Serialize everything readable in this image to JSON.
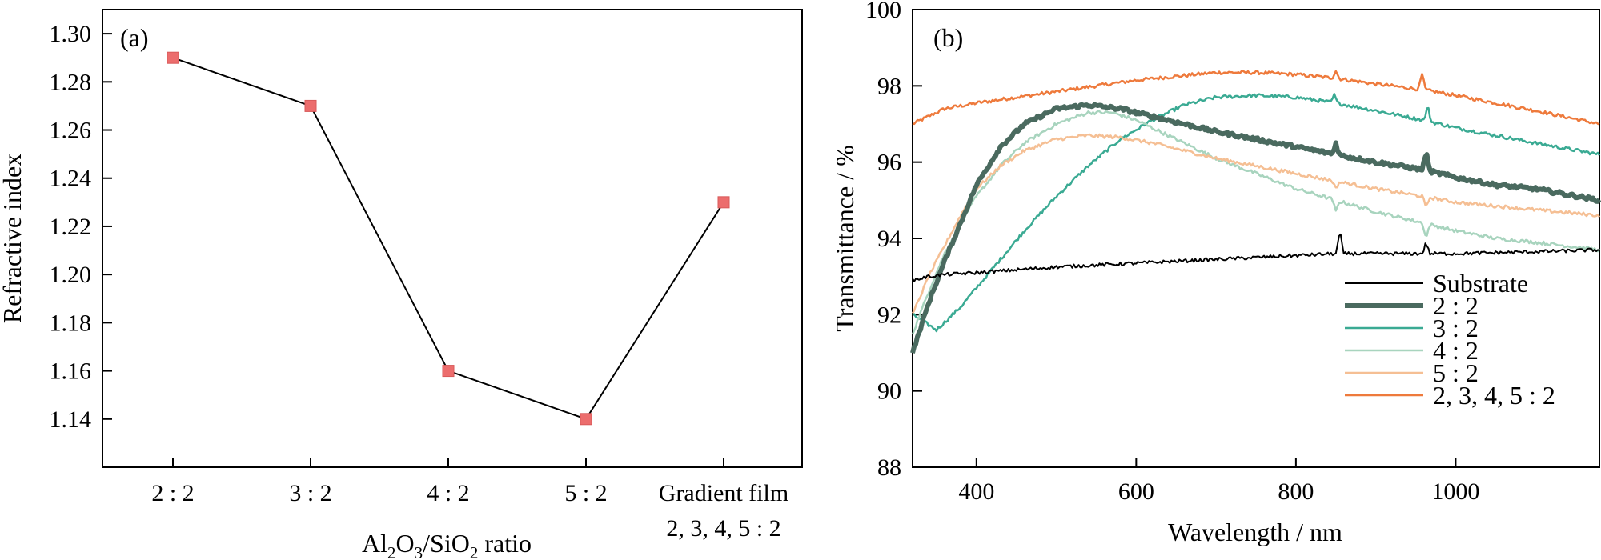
{
  "chart_data": [
    {
      "panel": "(a)",
      "type": "line",
      "xlabel_parts": [
        "Al",
        "2",
        "O",
        "3",
        "/SiO",
        "2",
        " ratio"
      ],
      "ylabel": "Refractive index",
      "categories": [
        {
          "lines": [
            "2 : 2"
          ]
        },
        {
          "lines": [
            "3 : 2"
          ]
        },
        {
          "lines": [
            "4 : 2"
          ]
        },
        {
          "lines": [
            "5 : 2"
          ]
        },
        {
          "lines": [
            "Gradient film",
            "2, 3, 4, 5 : 2"
          ]
        }
      ],
      "values": [
        1.29,
        1.27,
        1.16,
        1.14,
        1.23
      ],
      "line_connects_first_n": 4,
      "ylim": [
        1.12,
        1.31
      ],
      "yticks": [
        1.14,
        1.16,
        1.18,
        1.2,
        1.22,
        1.24,
        1.26,
        1.28,
        1.3
      ],
      "ytick_labels": [
        "1.14",
        "1.16",
        "1.18",
        "1.20",
        "1.22",
        "1.24",
        "1.26",
        "1.28",
        "1.30"
      ],
      "marker": "square",
      "marker_color": "#ec6d6d",
      "line_color": "#000000"
    },
    {
      "panel": "(b)",
      "type": "line",
      "xlabel": "Wavelength / nm",
      "ylabel": "Transmittance / %",
      "xlim": [
        320,
        1180
      ],
      "ylim": [
        88,
        100
      ],
      "xticks": [
        400,
        600,
        800,
        1000
      ],
      "xtick_labels": [
        "400",
        "600",
        "800",
        "1000"
      ],
      "yticks": [
        88,
        90,
        92,
        94,
        96,
        98,
        100
      ],
      "ytick_labels": [
        "88",
        "90",
        "92",
        "94",
        "96",
        "98",
        "100"
      ],
      "legend_position": "bottom-right",
      "series": [
        {
          "name": "Substrate",
          "color": "#000000",
          "width": 2,
          "x": [
            320,
            340,
            360,
            400,
            500,
            600,
            700,
            800,
            850,
            900,
            1000,
            1100,
            1180
          ],
          "y": [
            92.9,
            93.0,
            93.05,
            93.1,
            93.25,
            93.35,
            93.45,
            93.55,
            93.6,
            93.6,
            93.6,
            93.65,
            93.7
          ],
          "spikes": [
            {
              "x": 855,
              "dy": 0.6
            },
            {
              "x": 963,
              "dy": 0.3
            }
          ]
        },
        {
          "name": "2 : 2",
          "color": "#4a6a5f",
          "width": 6,
          "x": [
            320,
            340,
            360,
            380,
            400,
            430,
            460,
            500,
            540,
            580,
            620,
            660,
            700,
            750,
            800,
            850,
            900,
            960,
            1000,
            1050,
            1100,
            1180
          ],
          "y": [
            91.0,
            92.3,
            93.4,
            94.4,
            95.4,
            96.4,
            97.0,
            97.4,
            97.5,
            97.4,
            97.2,
            97.0,
            96.8,
            96.6,
            96.4,
            96.2,
            96.0,
            95.8,
            95.6,
            95.4,
            95.3,
            95.0
          ],
          "spikes": [
            {
              "x": 850,
              "dy": 0.3
            },
            {
              "x": 963,
              "dy": 0.5
            }
          ]
        },
        {
          "name": "3 : 2",
          "color": "#3aaa93",
          "width": 2.5,
          "x": [
            320,
            350,
            380,
            420,
            460,
            500,
            540,
            580,
            620,
            660,
            700,
            750,
            800,
            850,
            900,
            960,
            1000,
            1050,
            1100,
            1180
          ],
          "y": [
            92.0,
            91.6,
            92.2,
            93.2,
            94.2,
            95.1,
            95.9,
            96.6,
            97.1,
            97.5,
            97.7,
            97.75,
            97.7,
            97.55,
            97.35,
            97.1,
            96.9,
            96.7,
            96.5,
            96.2
          ],
          "spikes": [
            {
              "x": 848,
              "dy": 0.2
            },
            {
              "x": 965,
              "dy": 0.4
            }
          ]
        },
        {
          "name": "4 : 2",
          "color": "#a8d4be",
          "width": 2.5,
          "x": [
            320,
            340,
            360,
            380,
            400,
            430,
            460,
            500,
            540,
            570,
            600,
            650,
            700,
            750,
            800,
            850,
            900,
            960,
            1000,
            1050,
            1100,
            1180
          ],
          "y": [
            91.5,
            92.6,
            93.6,
            94.4,
            95.1,
            95.9,
            96.5,
            97.0,
            97.3,
            97.3,
            97.1,
            96.6,
            96.1,
            95.7,
            95.3,
            95.0,
            94.7,
            94.4,
            94.2,
            94.0,
            93.9,
            93.7
          ],
          "spikes": [
            {
              "x": 850,
              "dy": -0.3
            },
            {
              "x": 963,
              "dy": -0.4
            }
          ]
        },
        {
          "name": "5 : 2",
          "color": "#f5bf94",
          "width": 2.5,
          "x": [
            320,
            340,
            360,
            380,
            400,
            430,
            460,
            500,
            540,
            580,
            620,
            660,
            700,
            750,
            800,
            850,
            900,
            960,
            1000,
            1050,
            1100,
            1180
          ],
          "y": [
            92.0,
            93.0,
            93.8,
            94.6,
            95.3,
            95.9,
            96.3,
            96.6,
            96.7,
            96.65,
            96.5,
            96.3,
            96.1,
            95.9,
            95.7,
            95.5,
            95.3,
            95.1,
            94.95,
            94.85,
            94.75,
            94.6
          ],
          "spikes": [
            {
              "x": 850,
              "dy": -0.2
            },
            {
              "x": 963,
              "dy": -0.3
            }
          ]
        },
        {
          "name": "2, 3, 4, 5 : 2",
          "color": "#ee7a3c",
          "width": 2.5,
          "x": [
            320,
            340,
            360,
            400,
            450,
            500,
            550,
            600,
            650,
            700,
            750,
            800,
            850,
            900,
            960,
            1000,
            1050,
            1100,
            1180
          ],
          "y": [
            97.0,
            97.2,
            97.4,
            97.55,
            97.7,
            97.85,
            98.0,
            98.15,
            98.25,
            98.35,
            98.35,
            98.3,
            98.2,
            98.05,
            97.9,
            97.75,
            97.55,
            97.35,
            97.0
          ],
          "spikes": [
            {
              "x": 850,
              "dy": 0.2
            },
            {
              "x": 958,
              "dy": 0.4
            }
          ]
        }
      ]
    }
  ]
}
